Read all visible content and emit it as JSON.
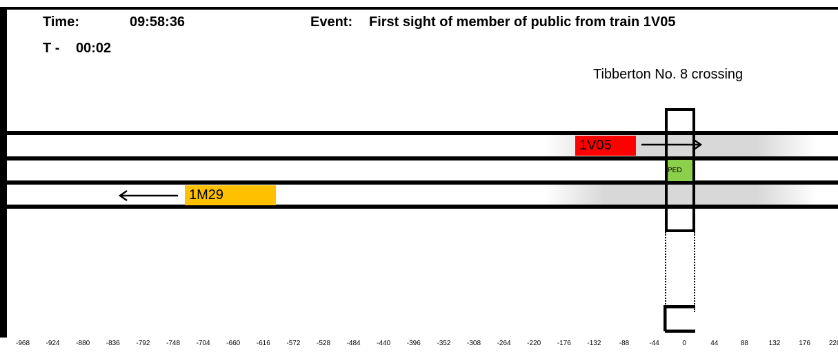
{
  "header": {
    "time_label": "Time:",
    "time_value": "09:58:36",
    "event_label": "Event:",
    "event_text": "First sight of member of public from train 1V05",
    "t_label": "T -",
    "t_value": "00:02"
  },
  "crossing": {
    "name": "Tibberton No. 8 crossing",
    "ped_label": "PED",
    "ped_color": "#8ccf4a"
  },
  "trains": [
    {
      "id": "1V05",
      "color": "#ff0000",
      "direction": "right"
    },
    {
      "id": "1M29",
      "color": "#ffc000",
      "direction": "left"
    }
  ],
  "axis": {
    "ticks": [
      "-968",
      "-924",
      "-880",
      "-836",
      "-792",
      "-748",
      "-704",
      "-660",
      "-616",
      "-572",
      "-528",
      "-484",
      "-440",
      "-396",
      "-352",
      "-308",
      "-264",
      "-220",
      "-176",
      "-132",
      "-88",
      "-44",
      "0",
      "44",
      "88",
      "132",
      "176",
      "220"
    ]
  }
}
